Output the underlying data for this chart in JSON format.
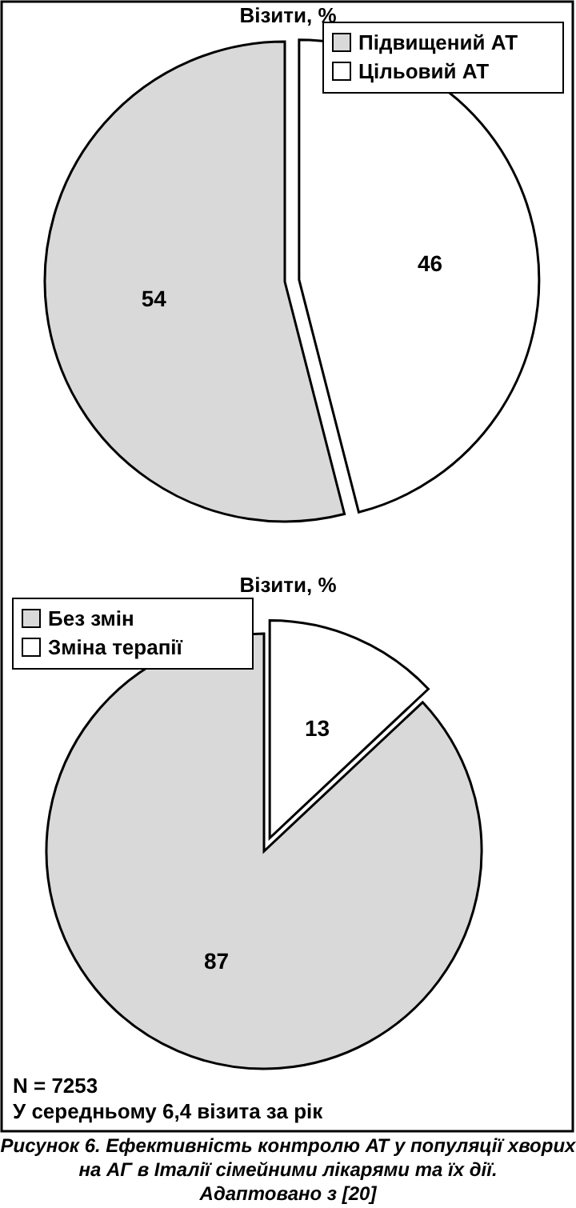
{
  "chart_data": [
    {
      "type": "pie",
      "title": "Візити, %",
      "categories": [
        "Підвищений АТ",
        "Цільовий АТ"
      ],
      "values": [
        54,
        46
      ],
      "colors": [
        "#d9d9d9",
        "#ffffff"
      ],
      "data_labels": true,
      "legend": "top right"
    },
    {
      "type": "pie",
      "title": "Візити, %",
      "categories": [
        "Без змін",
        "Зміна терапії"
      ],
      "values": [
        87,
        13
      ],
      "colors": [
        "#d9d9d9",
        "#ffffff"
      ],
      "data_labels": true,
      "legend": "top left",
      "annotations": [
        "N = 7253",
        "У середньому 6,4 візита за рік",
        "Рисунок 6. Ефективність контролю АТ у популяції хворих на АГ в Італії сімейними лікарями та їх дії.",
        "Адаптовано з [20]"
      ]
    }
  ]
}
